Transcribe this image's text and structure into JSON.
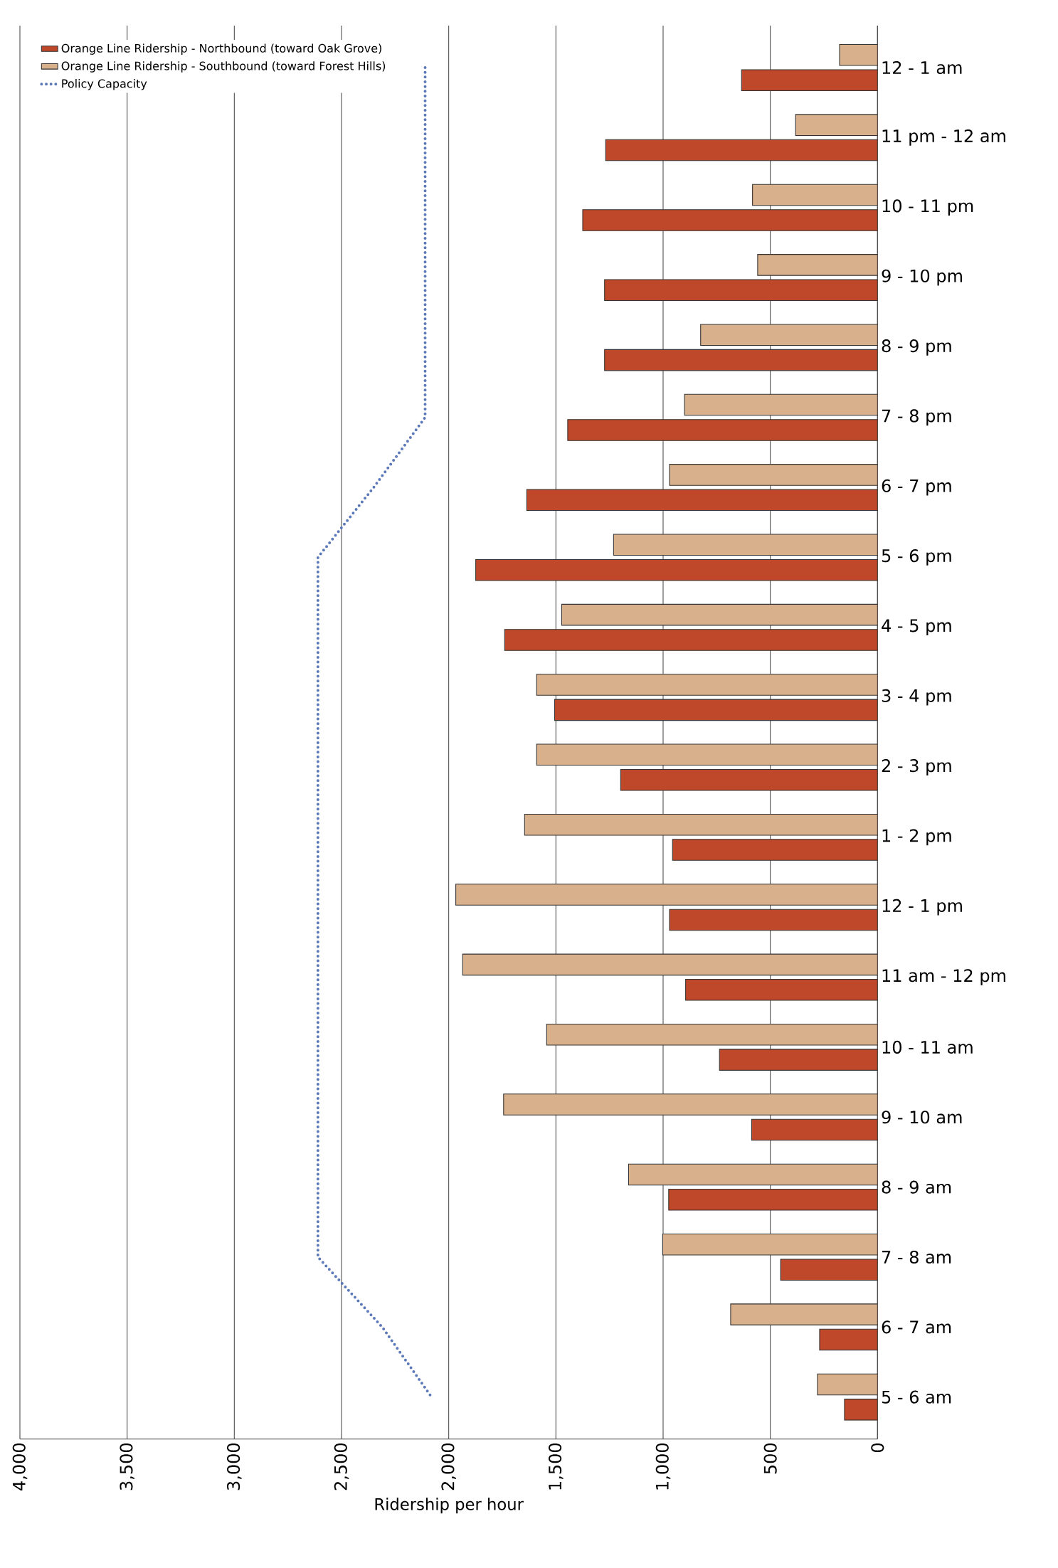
{
  "chart_data": {
    "type": "bar",
    "orientation": "horizontal",
    "xlabel": "Ridership per hour",
    "categories": [
      "12 - 1 am",
      "11 pm - 12 am",
      "10 - 11 pm",
      "9 - 10 pm",
      "8 - 9 pm",
      "7 - 8 pm",
      "6 - 7 pm",
      "5 - 6 pm",
      "4 - 5 pm",
      "3 - 4 pm",
      "2 - 3 pm",
      "1 - 2 pm",
      "12 - 1 pm",
      "11 am - 12 pm",
      "10 - 11 am",
      "9 - 10 am",
      "8 - 9 am",
      "7 - 8 am",
      "6 - 7 am",
      "5 - 6 am"
    ],
    "series": [
      {
        "name": "Orange Line Ridership - Northbound (toward Oak Grove)",
        "color": "#c0482a",
        "values": [
          634,
          1268,
          1375,
          1273,
          1273,
          1445,
          1636,
          1874,
          1739,
          1506,
          1198,
          956,
          970,
          895,
          737,
          587,
          974,
          452,
          270,
          154
        ]
      },
      {
        "name": "Orange Line Ridership - Southbound (toward Forest Hills)",
        "color": "#d9b08c",
        "values": [
          177,
          382,
          583,
          559,
          825,
          900,
          970,
          1231,
          1473,
          1590,
          1590,
          1646,
          1967,
          1935,
          1543,
          1744,
          1161,
          1002,
          685,
          280
        ]
      },
      {
        "name": "Policy Capacity",
        "type": "line",
        "line_style": "dotted",
        "marker": "none",
        "color": "#5b78b8",
        "values": [
          2110,
          2110,
          2110,
          2110,
          2110,
          2110,
          2350,
          2610,
          2610,
          2610,
          2610,
          2610,
          2610,
          2610,
          2610,
          2610,
          2610,
          2610,
          2310,
          2080
        ]
      }
    ],
    "xlim": [
      4000,
      0
    ],
    "xticks": [
      {
        "value": 4000,
        "label": "4,000"
      },
      {
        "value": 3500,
        "label": "3,500"
      },
      {
        "value": 3000,
        "label": "3,000"
      },
      {
        "value": 2500,
        "label": "2,500"
      },
      {
        "value": 2000,
        "label": "2,000"
      },
      {
        "value": 1500,
        "label": "1,500"
      },
      {
        "value": 1000,
        "label": "1,000"
      },
      500,
      0
    ],
    "grid": "x",
    "legend": "top left"
  }
}
